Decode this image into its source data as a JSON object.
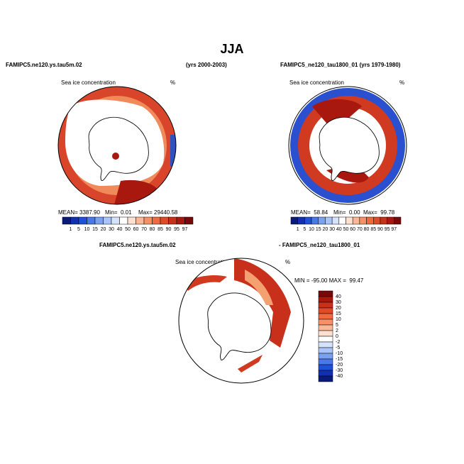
{
  "title": "JJA",
  "panels": [
    {
      "header_left": "FAMIPC5.ne120.ys.tau5m.02",
      "header_right": "(yrs 2000-2003)",
      "subtitle": "Sea ice concentration",
      "unit": "%",
      "stats": [
        "MEAN= 3387.90",
        "Min=  0.01",
        "Max= 29440.58"
      ],
      "colorbar_labels": [
        "1",
        "5",
        "10",
        "15",
        "20",
        "30",
        "40",
        "50",
        "60",
        "70",
        "80",
        "85",
        "90",
        "95",
        "97"
      ]
    },
    {
      "header_left": "FAMIPC5_ne120_tau1800_01 (yrs 1979-1980)",
      "subtitle": "Sea ice concentration",
      "unit": "%",
      "stats": [
        "MEAN=  58.84",
        "Min=  0.00",
        "Max=  99.78"
      ],
      "colorbar_labels": [
        "1",
        "5",
        "10",
        "15",
        "20",
        "30",
        "40",
        "50",
        "60",
        "70",
        "80",
        "85",
        "90",
        "95",
        "97"
      ]
    },
    {
      "header_left": "FAMIPC5.ne120.ys.tau5m.02",
      "header_right": "- FAMIPC5_ne120_tau1800_01",
      "subtitle": "Sea ice concentration",
      "unit": "%",
      "stats": [
        "MIN = -95.00 MAX =  99.47"
      ],
      "colorbar_labels": [
        "40",
        "30",
        "20",
        "15",
        "10",
        "5",
        "2",
        "0",
        "-2",
        "-5",
        "-10",
        "-15",
        "-20",
        "-30",
        "-40"
      ]
    }
  ]
}
